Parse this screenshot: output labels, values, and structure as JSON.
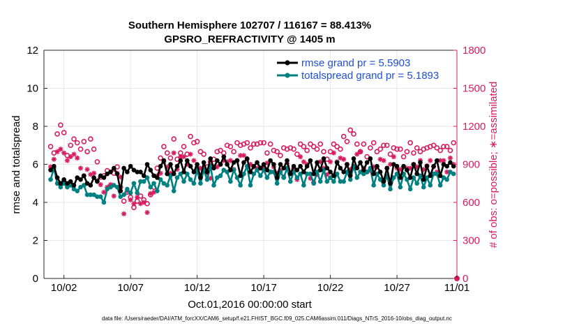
{
  "colors": {
    "rmse": "#000000",
    "totalspread": "#008080",
    "obs": "#d81b5e",
    "legend_text": "#1f4fd6",
    "grid": "#e6e6e6",
    "axis": "#262626"
  },
  "chart_data": {
    "type": "line",
    "title": "Southern Hemisphere 102707 / 116167 = 88.413%",
    "subtitle": "GPSRO_REFRACTIVITY @ 1405 m",
    "xlabel": "Oct.01,2016 00:00:00 start",
    "ylabel": "rmse and totalspread",
    "ylabel_right": "# of obs: o=possible; ∗=assimilated",
    "footnote": "data file: /Users/raeder/DAI/ATM_forcXX/CAM6_setup/f.e21.FHIST_BGC.f09_025.CAM6assim.011/Diags_NTrS_2016-10/obs_diag_output.nc",
    "grid": true,
    "legend_position": "top-right",
    "xlim": [
      0.5,
      31.5
    ],
    "ylim": [
      0,
      12
    ],
    "ylim_right": [
      0,
      1800
    ],
    "x_ticks": [
      2,
      7,
      12,
      17,
      22,
      27,
      32
    ],
    "x_tick_labels": [
      "10/02",
      "10/07",
      "10/12",
      "10/17",
      "10/22",
      "10/27",
      "11/01"
    ],
    "y_ticks": [
      "0",
      "2",
      "4",
      "6",
      "8",
      "10",
      "12"
    ],
    "y_ticks_right": [
      "0",
      "300",
      "600",
      "900",
      "1200",
      "1500",
      "1800"
    ],
    "x": [
      1.0,
      1.25,
      1.5,
      1.75,
      2.0,
      2.25,
      2.5,
      2.75,
      3.0,
      3.25,
      3.5,
      3.75,
      4.0,
      4.25,
      4.5,
      4.75,
      5.0,
      5.25,
      5.5,
      5.75,
      6.0,
      6.25,
      6.5,
      6.75,
      7.0,
      7.25,
      7.5,
      7.75,
      8.0,
      8.25,
      8.5,
      8.75,
      9.0,
      9.25,
      9.5,
      9.75,
      10.0,
      10.25,
      10.5,
      10.75,
      11.0,
      11.25,
      11.5,
      11.75,
      12.0,
      12.25,
      12.5,
      12.75,
      13.0,
      13.25,
      13.5,
      13.75,
      14.0,
      14.25,
      14.5,
      14.75,
      15.0,
      15.25,
      15.5,
      15.75,
      16.0,
      16.25,
      16.5,
      16.75,
      17.0,
      17.25,
      17.5,
      17.75,
      18.0,
      18.25,
      18.5,
      18.75,
      19.0,
      19.25,
      19.5,
      19.75,
      20.0,
      20.25,
      20.5,
      20.75,
      21.0,
      21.25,
      21.5,
      21.75,
      22.0,
      22.25,
      22.5,
      22.75,
      23.0,
      23.25,
      23.5,
      23.75,
      24.0,
      24.25,
      24.5,
      24.75,
      25.0,
      25.25,
      25.5,
      25.75,
      26.0,
      26.25,
      26.5,
      26.75,
      27.0,
      27.25,
      27.5,
      27.75,
      28.0,
      28.25,
      28.5,
      28.75,
      29.0,
      29.25,
      29.5,
      29.75,
      30.0,
      30.25,
      30.5,
      30.75,
      31.0,
      31.25,
      32.0
    ],
    "series": [
      {
        "name": "rmse grand pr = 5.5903",
        "axis": "left",
        "values": [
          5.7,
          5.9,
          5.3,
          5.0,
          5.2,
          5.0,
          5.1,
          4.9,
          5.3,
          5.2,
          5.4,
          5.0,
          4.9,
          5.3,
          5.1,
          5.4,
          5.3,
          5.5,
          5.6,
          5.8,
          5.5,
          4.6,
          5.8,
          5.6,
          5.9,
          5.7,
          5.6,
          5.6,
          5.4,
          6.0,
          5.7,
          5.4,
          5.3,
          5.9,
          6.2,
          5.5,
          6.0,
          5.5,
          5.9,
          6.2,
          5.6,
          6.2,
          5.9,
          5.6,
          6.0,
          5.3,
          6.1,
          5.6,
          6.3,
          5.8,
          6.2,
          6.0,
          6.4,
          6.0,
          5.7,
          6.1,
          6.2,
          5.4,
          6.1,
          6.3,
          5.6,
          5.9,
          6.1,
          5.8,
          6.0,
          5.7,
          6.2,
          6.0,
          5.3,
          6.0,
          5.8,
          6.2,
          5.5,
          5.9,
          5.7,
          5.9,
          5.6,
          5.9,
          6.2,
          5.5,
          6.1,
          5.7,
          6.3,
          5.8,
          5.6,
          5.4,
          6.1,
          5.8,
          5.6,
          6.0,
          5.4,
          6.3,
          5.8,
          6.1,
          5.7,
          6.1,
          6.3,
          5.5,
          5.9,
          5.6,
          5.1,
          5.8,
          5.0,
          6.0,
          5.9,
          5.3,
          5.9,
          5.7,
          5.3,
          6.0,
          5.5,
          6.1,
          5.2,
          5.9,
          5.4,
          5.9,
          6.2,
          5.4,
          6.0,
          5.9,
          6.1,
          5.9,
          null
        ]
      },
      {
        "name": "totalspread grand pr = 5.1893",
        "axis": "left",
        "values": [
          5.2,
          5.8,
          5.0,
          4.8,
          5.0,
          4.8,
          4.9,
          4.7,
          4.6,
          4.8,
          4.9,
          4.4,
          4.4,
          4.4,
          4.3,
          4.3,
          4.0,
          4.7,
          4.8,
          4.9,
          4.8,
          4.3,
          4.4,
          4.7,
          4.5,
          5.0,
          4.5,
          5.1,
          5.1,
          5.3,
          4.8,
          5.0,
          4.6,
          5.2,
          5.0,
          4.9,
          5.4,
          4.6,
          5.3,
          5.5,
          5.1,
          5.5,
          5.2,
          5.0,
          5.7,
          5.0,
          5.7,
          5.2,
          5.9,
          4.9,
          5.3,
          5.4,
          5.7,
          5.6,
          5.1,
          5.7,
          5.3,
          4.9,
          5.5,
          5.9,
          4.9,
          5.5,
          5.7,
          5.4,
          5.7,
          5.3,
          5.6,
          5.6,
          5.0,
          5.6,
          5.3,
          5.8,
          5.1,
          5.6,
          5.3,
          5.5,
          4.9,
          5.5,
          5.5,
          5.0,
          5.6,
          5.1,
          5.7,
          5.1,
          5.3,
          5.1,
          5.5,
          5.1,
          5.1,
          5.6,
          5.2,
          5.9,
          5.3,
          5.6,
          5.5,
          5.6,
          5.8,
          4.9,
          5.5,
          5.2,
          4.9,
          5.4,
          4.7,
          5.3,
          5.5,
          4.8,
          5.5,
          5.2,
          4.7,
          5.3,
          5.0,
          5.4,
          4.8,
          5.3,
          4.9,
          5.5,
          5.5,
          4.9,
          5.3,
          5.2,
          5.6,
          5.5,
          null
        ]
      },
      {
        "name": "possible",
        "axis": "right",
        "marker": "o",
        "values": [
          1040,
          990,
          1140,
          1210,
          1150,
          970,
          1050,
          1100,
          1070,
          1020,
          1080,
          1000,
          1100,
          1020,
          920,
          800,
          810,
          850,
          730,
          830,
          880,
          720,
          610,
          680,
          640,
          560,
          610,
          650,
          620,
          590,
          660,
          720,
          870,
          950,
          1040,
          990,
          950,
          1100,
          940,
          990,
          1040,
          980,
          1120,
          1070,
          1080,
          1000,
          980,
          880,
          920,
          940,
          1000,
          1010,
          990,
          1050,
          1040,
          1000,
          1070,
          1050,
          1060,
          1070,
          1030,
          1060,
          1060,
          1070,
          1070,
          990,
          1060,
          1010,
          1000,
          970,
          1030,
          1020,
          1030,
          1020,
          980,
          1060,
          1040,
          1010,
          1060,
          1040,
          1020,
          1060,
          1000,
          940,
          1000,
          1060,
          1040,
          1020,
          1120,
          1080,
          1170,
          1140,
          1060,
          1000,
          1060,
          960,
          1030,
          1070,
          1000,
          1020,
          1050,
          1050,
          980,
          1030,
          1020,
          1020,
          960,
          1000,
          1070,
          990,
          1030,
          1000,
          1020,
          1030,
          1040,
          1050,
          1030,
          1010,
          1040,
          1040,
          1010,
          1070,
          0
        ]
      },
      {
        "name": "assimilated",
        "axis": "right",
        "marker": "*",
        "values": [
          880,
          940,
          1000,
          1020,
          990,
          930,
          960,
          980,
          950,
          870,
          810,
          860,
          820,
          830,
          770,
          740,
          680,
          720,
          740,
          650,
          830,
          800,
          510,
          690,
          620,
          590,
          640,
          590,
          600,
          520,
          670,
          680,
          810,
          830,
          920,
          880,
          830,
          990,
          860,
          960,
          960,
          900,
          980,
          930,
          880,
          870,
          870,
          830,
          790,
          880,
          880,
          900,
          930,
          920,
          930,
          860,
          930,
          970,
          970,
          940,
          900,
          880,
          870,
          870,
          880,
          910,
          840,
          880,
          830,
          850,
          800,
          910,
          830,
          870,
          780,
          960,
          920,
          900,
          790,
          760,
          820,
          920,
          870,
          820,
          920,
          990,
          920,
          950,
          940,
          900,
          860,
          880,
          980,
          1000,
          870,
          840,
          850,
          880,
          880,
          940,
          930,
          870,
          900,
          960,
          870,
          860,
          880,
          870,
          870,
          900,
          880,
          930,
          860,
          890,
          930,
          880,
          840,
          930,
          930,
          840,
          950,
          900,
          0
        ]
      }
    ]
  }
}
